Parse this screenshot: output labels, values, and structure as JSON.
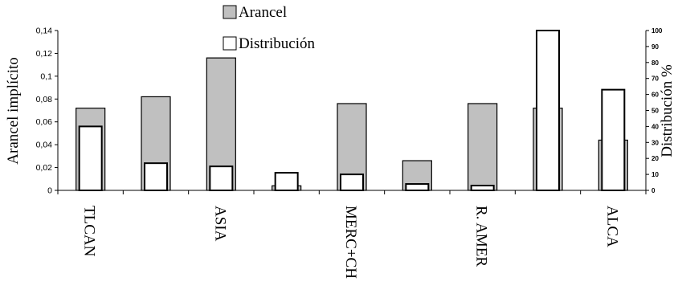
{
  "chart_data": {
    "type": "bar",
    "categories": [
      "TLCAN",
      "",
      "ASIA",
      "",
      "MERC+CH",
      "",
      "R. AMER",
      "",
      "ALCA"
    ],
    "ylabel": "Arancel implícito",
    "y2label": "Distribución %",
    "ylim": [
      0,
      0.14
    ],
    "y2lim": [
      0,
      100
    ],
    "yticks": [
      "0",
      "0,02",
      "0,04",
      "0,06",
      "0,08",
      "0,1",
      "0,12",
      "0,14"
    ],
    "y2ticks": [
      "0",
      "10",
      "20",
      "30",
      "40",
      "50",
      "60",
      "70",
      "80",
      "90",
      "100"
    ],
    "series": [
      {
        "name": "Arancel",
        "axis": "left",
        "color": "#c0c0c0",
        "values": [
          0.072,
          0.082,
          0.116,
          0.004,
          0.076,
          0.026,
          0.076,
          0.072,
          0.044
        ]
      },
      {
        "name": "Distribución",
        "axis": "right",
        "color": "#ffffff",
        "values": [
          40,
          17,
          15,
          11,
          10,
          4,
          3,
          100,
          63
        ]
      }
    ],
    "legend_position": "top-center",
    "grid": false
  }
}
